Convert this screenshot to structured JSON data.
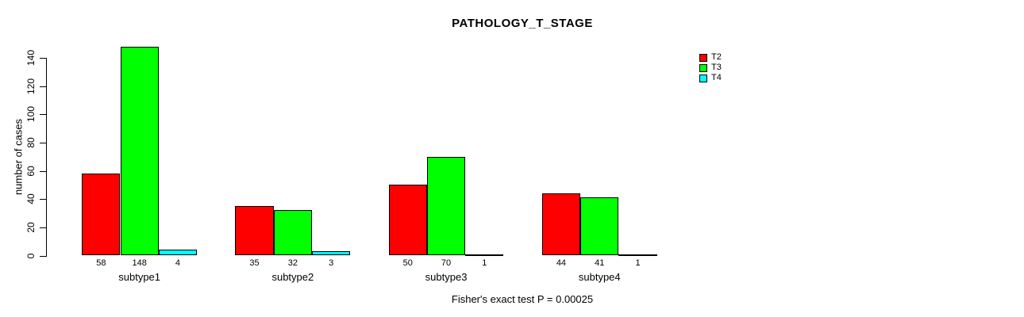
{
  "chart_data": {
    "type": "bar",
    "title": "PATHOLOGY_T_STAGE",
    "ylabel": "number of cases",
    "xlabel": "",
    "footer": "Fisher's exact test P = 0.00025",
    "categories": [
      "subtype1",
      "subtype2",
      "subtype3",
      "subtype4"
    ],
    "series": [
      {
        "name": "T2",
        "color": "#ff0000",
        "values": [
          58,
          35,
          50,
          44
        ]
      },
      {
        "name": "T3",
        "color": "#00ff00",
        "values": [
          148,
          32,
          70,
          41
        ]
      },
      {
        "name": "T4",
        "color": "#00ffff",
        "values": [
          4,
          3,
          1,
          1
        ]
      }
    ],
    "yticks": [
      0,
      20,
      40,
      60,
      80,
      100,
      120,
      140
    ],
    "ylim": [
      0,
      148
    ],
    "bar_value_labels_shown": true,
    "grid": false,
    "legend_position": "top-right",
    "legend_entries": [
      "T2",
      "T3",
      "T4"
    ],
    "colors": {
      "T2": "#ff0000",
      "T3": "#00ff00",
      "T4": "#00ffff",
      "axis": "#000000",
      "background": "#ffffff"
    }
  }
}
